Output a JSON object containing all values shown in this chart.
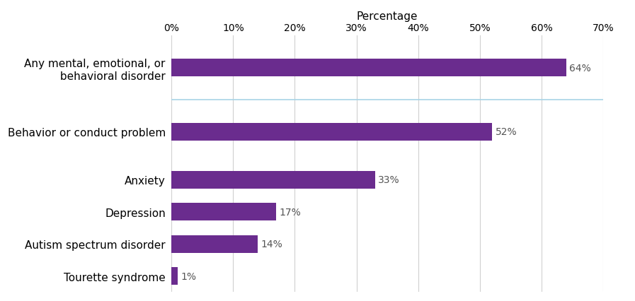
{
  "categories": [
    "Tourette syndrome",
    "Autism spectrum disorder",
    "Depression",
    "Anxiety",
    "Behavior or conduct problem",
    "Any mental, emotional, or\n behavioral disorder"
  ],
  "y_positions": [
    0,
    1,
    2,
    3,
    4.5,
    6.5
  ],
  "values": [
    1,
    14,
    17,
    33,
    52,
    64
  ],
  "labels": [
    "1%",
    "14%",
    "17%",
    "33%",
    "52%",
    "64%"
  ],
  "bar_color": "#6a2c8e",
  "bar_height": 0.55,
  "xlim": [
    0,
    70
  ],
  "ylim": [
    -0.5,
    7.5
  ],
  "xticks": [
    0,
    10,
    20,
    30,
    40,
    50,
    60,
    70
  ],
  "xtick_labels": [
    "0%",
    "10%",
    "20%",
    "30%",
    "40%",
    "50%",
    "60%",
    "70%"
  ],
  "xlabel": "Percentage",
  "separator_y": 5.5,
  "separator_color": "#a8d4e6",
  "background_color": "#ffffff",
  "label_fontsize": 11,
  "tick_fontsize": 10,
  "xlabel_fontsize": 11,
  "value_label_fontsize": 10,
  "value_label_color": "#555555",
  "grid_color": "#d0d0d0",
  "grid_linewidth": 0.8
}
